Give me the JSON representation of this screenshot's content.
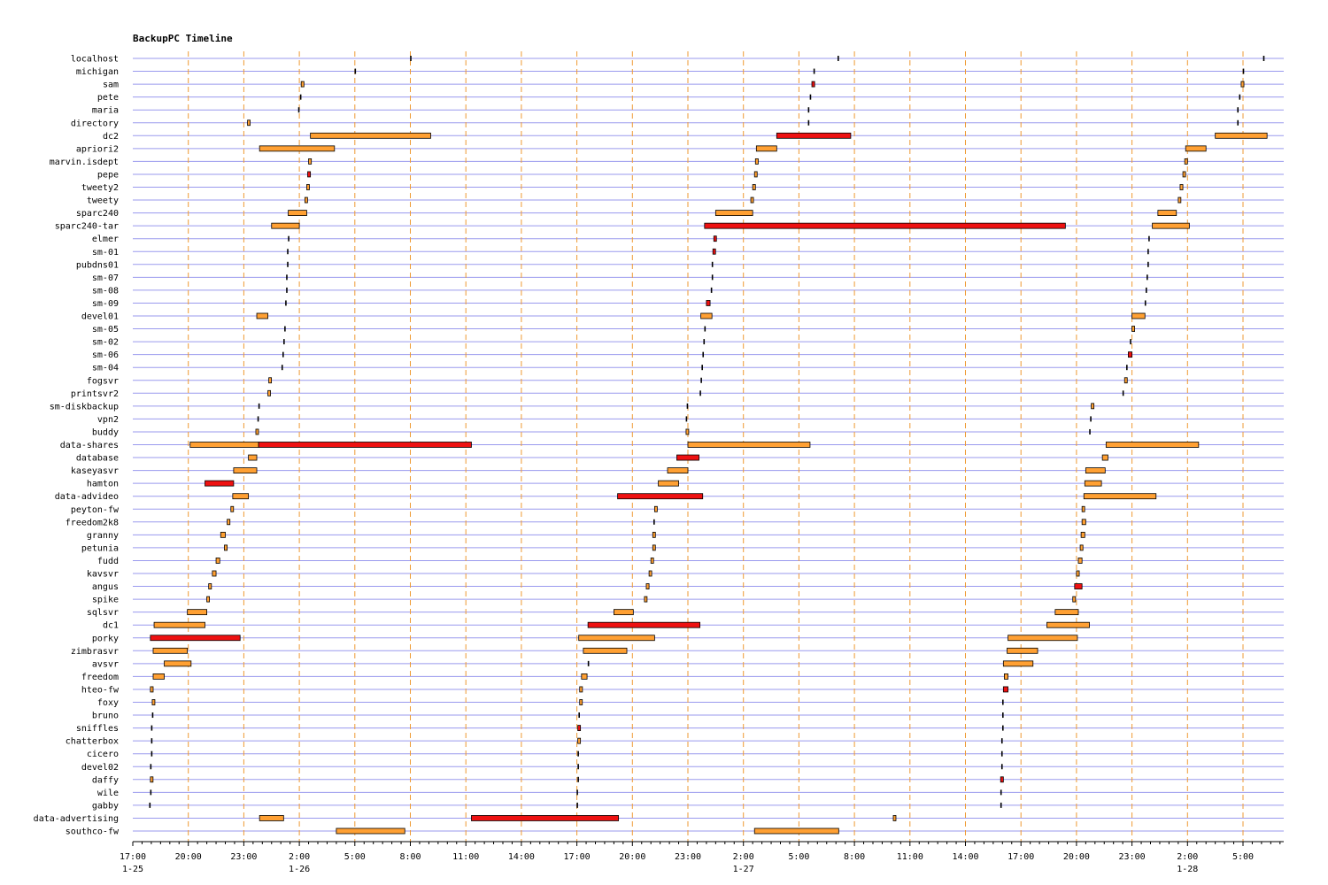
{
  "chart_data": {
    "type": "gantt-timeline",
    "title": "BackupPC Timeline",
    "x_axis": {
      "unit": "hours since 1-25 17:00",
      "range": [
        0,
        62.3
      ],
      "tick_step_hours": 3,
      "tick_labels": [
        "17:00",
        "20:00",
        "23:00",
        "2:00",
        "5:00",
        "8:00",
        "11:00",
        "14:00",
        "17:00",
        "20:00",
        "23:00",
        "2:00",
        "5:00",
        "8:00",
        "11:00",
        "14:00",
        "17:00",
        "20:00",
        "23:00",
        "2:00",
        "5:00"
      ],
      "date_labels": [
        {
          "at": 0,
          "text": "1-25"
        },
        {
          "at": 9,
          "text": "1-26"
        },
        {
          "at": 33,
          "text": "1-27"
        },
        {
          "at": 57,
          "text": "1-28"
        }
      ]
    },
    "legend": [
      {
        "status": "incremental",
        "color": "#ffa033"
      },
      {
        "status": "full",
        "color": "#ee1111"
      }
    ],
    "colors": {
      "grid_h": "#9a9aee",
      "grid_v": "#ee9a33",
      "stroke": "#000000"
    },
    "hosts": [
      {
        "name": "localhost",
        "jobs": [
          [
            15.0,
            0.05,
            "t"
          ],
          [
            38.1,
            0.05,
            "t"
          ],
          [
            61.1,
            0.05,
            "t"
          ]
        ]
      },
      {
        "name": "michigan",
        "jobs": [
          [
            12.0,
            0.05,
            "t"
          ],
          [
            36.8,
            0.05,
            "t"
          ],
          [
            60.0,
            0.05,
            "t"
          ]
        ]
      },
      {
        "name": "sam",
        "jobs": [
          [
            9.1,
            0.15,
            "i"
          ],
          [
            36.7,
            0.15,
            "f"
          ],
          [
            59.9,
            0.15,
            "i"
          ]
        ]
      },
      {
        "name": "pete",
        "jobs": [
          [
            9.05,
            0.05,
            "t"
          ],
          [
            36.6,
            0.05,
            "t"
          ],
          [
            59.8,
            0.05,
            "t"
          ]
        ]
      },
      {
        "name": "maria",
        "jobs": [
          [
            8.95,
            0.05,
            "t"
          ],
          [
            36.5,
            0.05,
            "t"
          ],
          [
            59.7,
            0.05,
            "t"
          ]
        ]
      },
      {
        "name": "directory",
        "jobs": [
          [
            6.2,
            0.1,
            "i"
          ],
          [
            36.5,
            0.05,
            "t"
          ],
          [
            59.7,
            0.05,
            "t"
          ]
        ]
      },
      {
        "name": "dc2",
        "jobs": [
          [
            9.6,
            6.5,
            "i"
          ],
          [
            34.8,
            4.0,
            "f"
          ],
          [
            58.5,
            2.8,
            "i"
          ]
        ]
      },
      {
        "name": "apriori2",
        "jobs": [
          [
            6.85,
            4.05,
            "i"
          ],
          [
            33.7,
            1.1,
            "i"
          ],
          [
            56.9,
            1.1,
            "i"
          ]
        ]
      },
      {
        "name": "marvin.isdept",
        "jobs": [
          [
            9.5,
            0.15,
            "i"
          ],
          [
            33.65,
            0.15,
            "i"
          ],
          [
            56.85,
            0.15,
            "i"
          ]
        ]
      },
      {
        "name": "pepe",
        "jobs": [
          [
            9.45,
            0.15,
            "f"
          ],
          [
            33.6,
            0.1,
            "i"
          ],
          [
            56.75,
            0.1,
            "i"
          ]
        ]
      },
      {
        "name": "tweety2",
        "jobs": [
          [
            9.4,
            0.1,
            "i"
          ],
          [
            33.5,
            0.15,
            "i"
          ],
          [
            56.6,
            0.15,
            "i"
          ]
        ]
      },
      {
        "name": "tweety",
        "jobs": [
          [
            9.3,
            0.1,
            "i"
          ],
          [
            33.4,
            0.1,
            "i"
          ],
          [
            56.5,
            0.1,
            "i"
          ]
        ]
      },
      {
        "name": "sparc240",
        "jobs": [
          [
            8.4,
            1.0,
            "i"
          ],
          [
            31.5,
            2.0,
            "i"
          ],
          [
            55.4,
            1.0,
            "i"
          ]
        ]
      },
      {
        "name": "sparc240-tar",
        "jobs": [
          [
            7.5,
            1.5,
            "i"
          ],
          [
            30.9,
            19.5,
            "f"
          ],
          [
            55.1,
            2.0,
            "i"
          ]
        ]
      },
      {
        "name": "elmer",
        "jobs": [
          [
            8.4,
            0.05,
            "t"
          ],
          [
            31.4,
            0.1,
            "f"
          ],
          [
            54.9,
            0.05,
            "t"
          ]
        ]
      },
      {
        "name": "sm-01",
        "jobs": [
          [
            8.35,
            0.05,
            "t"
          ],
          [
            31.35,
            0.1,
            "f"
          ],
          [
            54.85,
            0.05,
            "t"
          ]
        ]
      },
      {
        "name": "pubdns01",
        "jobs": [
          [
            8.35,
            0.05,
            "t"
          ],
          [
            31.3,
            0.05,
            "t"
          ],
          [
            54.85,
            0.05,
            "t"
          ]
        ]
      },
      {
        "name": "sm-07",
        "jobs": [
          [
            8.3,
            0.05,
            "t"
          ],
          [
            31.3,
            0.05,
            "t"
          ],
          [
            54.8,
            0.05,
            "t"
          ]
        ]
      },
      {
        "name": "sm-08",
        "jobs": [
          [
            8.3,
            0.05,
            "t"
          ],
          [
            31.25,
            0.05,
            "t"
          ],
          [
            54.75,
            0.05,
            "t"
          ]
        ]
      },
      {
        "name": "sm-09",
        "jobs": [
          [
            8.25,
            0.05,
            "t"
          ],
          [
            31.0,
            0.2,
            "f"
          ],
          [
            54.7,
            0.05,
            "t"
          ]
        ]
      },
      {
        "name": "devel01",
        "jobs": [
          [
            6.7,
            0.6,
            "i"
          ],
          [
            30.7,
            0.6,
            "i"
          ],
          [
            54.0,
            0.7,
            "i"
          ]
        ]
      },
      {
        "name": "sm-05",
        "jobs": [
          [
            8.2,
            0.05,
            "t"
          ],
          [
            30.9,
            0.05,
            "t"
          ],
          [
            54.0,
            0.1,
            "i"
          ]
        ]
      },
      {
        "name": "sm-02",
        "jobs": [
          [
            8.15,
            0.05,
            "t"
          ],
          [
            30.85,
            0.05,
            "t"
          ],
          [
            53.9,
            0.05,
            "t"
          ]
        ]
      },
      {
        "name": "sm-06",
        "jobs": [
          [
            8.1,
            0.05,
            "t"
          ],
          [
            30.8,
            0.05,
            "t"
          ],
          [
            53.8,
            0.2,
            "f"
          ]
        ]
      },
      {
        "name": "sm-04",
        "jobs": [
          [
            8.05,
            0.05,
            "t"
          ],
          [
            30.75,
            0.05,
            "t"
          ],
          [
            53.7,
            0.05,
            "t"
          ]
        ]
      },
      {
        "name": "fogsvr",
        "jobs": [
          [
            7.35,
            0.1,
            "i"
          ],
          [
            30.7,
            0.05,
            "t"
          ],
          [
            53.6,
            0.1,
            "i"
          ]
        ]
      },
      {
        "name": "printsvr2",
        "jobs": [
          [
            7.3,
            0.1,
            "i"
          ],
          [
            30.65,
            0.05,
            "t"
          ],
          [
            53.5,
            0.05,
            "t"
          ]
        ]
      },
      {
        "name": "sm-diskbackup",
        "jobs": [
          [
            6.8,
            0.05,
            "t"
          ],
          [
            29.95,
            0.05,
            "t"
          ],
          [
            51.8,
            0.1,
            "i"
          ]
        ]
      },
      {
        "name": "vpn2",
        "jobs": [
          [
            6.75,
            0.05,
            "t"
          ],
          [
            29.9,
            0.05,
            "t"
          ],
          [
            51.75,
            0.05,
            "t"
          ]
        ]
      },
      {
        "name": "buddy",
        "jobs": [
          [
            6.65,
            0.1,
            "i"
          ],
          [
            29.9,
            0.1,
            "i"
          ],
          [
            51.7,
            0.05,
            "t"
          ]
        ]
      },
      {
        "name": "data-shares",
        "jobs": [
          [
            3.1,
            3.7,
            "i"
          ],
          [
            6.8,
            11.5,
            "f"
          ],
          [
            30.0,
            6.6,
            "i"
          ],
          [
            52.6,
            5.0,
            "i"
          ]
        ]
      },
      {
        "name": "database",
        "jobs": [
          [
            6.25,
            0.45,
            "i"
          ],
          [
            29.4,
            1.2,
            "f"
          ],
          [
            52.4,
            0.3,
            "i"
          ]
        ]
      },
      {
        "name": "kaseyasvr",
        "jobs": [
          [
            5.45,
            1.25,
            "i"
          ],
          [
            28.9,
            1.1,
            "i"
          ],
          [
            51.5,
            1.05,
            "i"
          ]
        ]
      },
      {
        "name": "hamton",
        "jobs": [
          [
            3.9,
            1.55,
            "f"
          ],
          [
            28.4,
            1.1,
            "i"
          ],
          [
            51.45,
            0.9,
            "i"
          ]
        ]
      },
      {
        "name": "data-advideo",
        "jobs": [
          [
            5.4,
            0.85,
            "i"
          ],
          [
            26.2,
            4.6,
            "f"
          ],
          [
            51.4,
            3.9,
            "i"
          ]
        ]
      },
      {
        "name": "peyton-fw",
        "jobs": [
          [
            5.3,
            0.1,
            "i"
          ],
          [
            28.2,
            0.1,
            "i"
          ],
          [
            51.3,
            0.1,
            "i"
          ]
        ]
      },
      {
        "name": "freedom2k8",
        "jobs": [
          [
            5.1,
            0.15,
            "i"
          ],
          [
            28.15,
            0.05,
            "t"
          ],
          [
            51.3,
            0.2,
            "i"
          ]
        ]
      },
      {
        "name": "granny",
        "jobs": [
          [
            4.75,
            0.25,
            "i"
          ],
          [
            28.1,
            0.1,
            "i"
          ],
          [
            51.25,
            0.2,
            "i"
          ]
        ]
      },
      {
        "name": "petunia",
        "jobs": [
          [
            4.95,
            0.15,
            "i"
          ],
          [
            28.1,
            0.1,
            "i"
          ],
          [
            51.2,
            0.15,
            "i"
          ]
        ]
      },
      {
        "name": "fudd",
        "jobs": [
          [
            4.5,
            0.2,
            "i"
          ],
          [
            28.0,
            0.1,
            "i"
          ],
          [
            51.1,
            0.2,
            "i"
          ]
        ]
      },
      {
        "name": "kavsvr",
        "jobs": [
          [
            4.3,
            0.2,
            "i"
          ],
          [
            27.9,
            0.1,
            "i"
          ],
          [
            51.0,
            0.15,
            "i"
          ]
        ]
      },
      {
        "name": "angus",
        "jobs": [
          [
            4.1,
            0.15,
            "i"
          ],
          [
            27.75,
            0.15,
            "i"
          ],
          [
            50.9,
            0.4,
            "f"
          ]
        ]
      },
      {
        "name": "spike",
        "jobs": [
          [
            4.0,
            0.1,
            "i"
          ],
          [
            27.65,
            0.1,
            "i"
          ],
          [
            50.8,
            0.15,
            "i"
          ]
        ]
      },
      {
        "name": "sqlsvr",
        "jobs": [
          [
            2.95,
            1.05,
            "i"
          ],
          [
            26.0,
            1.05,
            "i"
          ],
          [
            49.85,
            1.25,
            "i"
          ]
        ]
      },
      {
        "name": "dc1",
        "jobs": [
          [
            1.15,
            2.75,
            "i"
          ],
          [
            24.6,
            6.05,
            "f"
          ],
          [
            49.4,
            2.3,
            "i"
          ]
        ]
      },
      {
        "name": "porky",
        "jobs": [
          [
            0.95,
            4.85,
            "f"
          ],
          [
            24.1,
            4.1,
            "i"
          ],
          [
            47.3,
            3.75,
            "i"
          ]
        ]
      },
      {
        "name": "zimbrasvr",
        "jobs": [
          [
            1.1,
            1.85,
            "i"
          ],
          [
            24.35,
            2.35,
            "i"
          ],
          [
            47.25,
            1.65,
            "i"
          ]
        ]
      },
      {
        "name": "avsvr",
        "jobs": [
          [
            1.7,
            1.45,
            "i"
          ],
          [
            24.6,
            0.1,
            "t"
          ],
          [
            47.05,
            1.6,
            "i"
          ]
        ]
      },
      {
        "name": "freedom",
        "jobs": [
          [
            1.1,
            0.6,
            "i"
          ],
          [
            24.25,
            0.3,
            "i"
          ],
          [
            47.1,
            0.2,
            "i"
          ]
        ]
      },
      {
        "name": "hteo-fw",
        "jobs": [
          [
            0.95,
            0.15,
            "i"
          ],
          [
            24.15,
            0.15,
            "i"
          ],
          [
            47.05,
            0.25,
            "f"
          ]
        ]
      },
      {
        "name": "foxy",
        "jobs": [
          [
            1.05,
            0.1,
            "i"
          ],
          [
            24.15,
            0.1,
            "i"
          ],
          [
            47.0,
            0.05,
            "t"
          ]
        ]
      },
      {
        "name": "bruno",
        "jobs": [
          [
            1.05,
            0.05,
            "t"
          ],
          [
            24.1,
            0.05,
            "t"
          ],
          [
            47.0,
            0.05,
            "t"
          ]
        ]
      },
      {
        "name": "sniffles",
        "jobs": [
          [
            1.0,
            0.05,
            "t"
          ],
          [
            24.05,
            0.1,
            "f"
          ],
          [
            47.0,
            0.05,
            "t"
          ]
        ]
      },
      {
        "name": "chatterbox",
        "jobs": [
          [
            1.0,
            0.05,
            "t"
          ],
          [
            24.05,
            0.1,
            "i"
          ],
          [
            46.95,
            0.05,
            "t"
          ]
        ]
      },
      {
        "name": "cicero",
        "jobs": [
          [
            1.0,
            0.05,
            "t"
          ],
          [
            24.05,
            0.05,
            "t"
          ],
          [
            46.95,
            0.05,
            "t"
          ]
        ]
      },
      {
        "name": "devel02",
        "jobs": [
          [
            0.95,
            0.05,
            "t"
          ],
          [
            24.05,
            0.05,
            "t"
          ],
          [
            46.95,
            0.05,
            "t"
          ]
        ]
      },
      {
        "name": "daffy",
        "jobs": [
          [
            0.95,
            0.1,
            "i"
          ],
          [
            24.05,
            0.05,
            "t"
          ],
          [
            46.9,
            0.15,
            "f"
          ]
        ]
      },
      {
        "name": "wile",
        "jobs": [
          [
            0.95,
            0.05,
            "t"
          ],
          [
            24.0,
            0.05,
            "t"
          ],
          [
            46.9,
            0.05,
            "t"
          ]
        ]
      },
      {
        "name": "gabby",
        "jobs": [
          [
            0.9,
            0.05,
            "t"
          ],
          [
            24.0,
            0.05,
            "t"
          ],
          [
            46.9,
            0.05,
            "t"
          ]
        ]
      },
      {
        "name": "data-advertising",
        "jobs": [
          [
            6.85,
            1.3,
            "i"
          ],
          [
            18.3,
            7.95,
            "f"
          ],
          [
            41.1,
            0.1,
            "i"
          ]
        ]
      },
      {
        "name": "southco-fw",
        "jobs": [
          [
            11.0,
            3.7,
            "i"
          ],
          [
            33.6,
            4.55,
            "i"
          ]
        ]
      }
    ]
  }
}
